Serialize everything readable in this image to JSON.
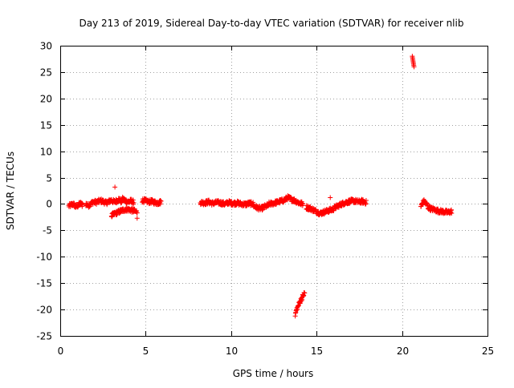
{
  "chart_data": {
    "type": "scatter",
    "title": "Day 213 of 2019, Sidereal Day-to-day VTEC variation (SDTVAR) for receiver nlib",
    "xlabel": "GPS time / hours",
    "ylabel": "SDTVAR / TECUs",
    "xlim": [
      0,
      25
    ],
    "ylim": [
      -25,
      30
    ],
    "xticks": [
      0,
      5,
      10,
      15,
      20,
      25
    ],
    "yticks": [
      -25,
      -20,
      -15,
      -10,
      -5,
      0,
      5,
      10,
      15,
      20,
      25,
      30
    ],
    "xtick_labels": [
      "0",
      "5",
      "10",
      "15",
      "20",
      "25"
    ],
    "ytick_labels": [
      "-25",
      "-20",
      "-15",
      "-10",
      "-5",
      "0",
      "5",
      "10",
      "15",
      "20",
      "25",
      "30"
    ],
    "grid": true,
    "marker": "+",
    "color": "#ff0000",
    "series": [
      {
        "name": "nlib",
        "segments": [
          {
            "x_start": 0.5,
            "x_end": 1.3,
            "y": [
              -0.4,
              -0.2,
              0.0,
              -0.5,
              -0.3,
              0.1,
              -0.2
            ]
          },
          {
            "x_start": 1.5,
            "x_end": 3.6,
            "y": [
              0.0,
              -0.3,
              0.1,
              0.4,
              0.3,
              0.5,
              0.6,
              0.4,
              0.2,
              0.5,
              0.7,
              0.4,
              0.6,
              0.9,
              0.3
            ]
          },
          {
            "x_start": 3.6,
            "x_end": 4.3,
            "y": [
              1.0,
              0.8,
              0.5,
              0.4,
              0.6,
              0.3
            ]
          },
          {
            "x_start": 3.0,
            "x_end": 4.5,
            "y": [
              -2.2,
              -1.8,
              -1.5,
              -1.2,
              -1.0,
              -1.1,
              -1.3,
              -1.5
            ]
          },
          {
            "x_start": 4.8,
            "x_end": 5.9,
            "y": [
              0.7,
              0.6,
              0.4,
              0.5,
              0.3,
              0.2,
              0.4
            ]
          },
          {
            "x_start": 8.2,
            "x_end": 11.3,
            "y": [
              0.3,
              0.2,
              0.4,
              0.1,
              0.3,
              0.2,
              0.0,
              0.3,
              0.1,
              0.2,
              0.0,
              -0.1,
              0.1,
              0.0
            ]
          },
          {
            "x_start": 11.3,
            "x_end": 12.2,
            "y": [
              -0.3,
              -0.7,
              -0.9,
              -0.5,
              -0.3
            ]
          },
          {
            "x_start": 12.2,
            "x_end": 14.2,
            "y": [
              0.0,
              0.1,
              0.3,
              0.5,
              0.7,
              1.2,
              0.9,
              0.6,
              0.2,
              0.0
            ]
          },
          {
            "x_start": 14.4,
            "x_end": 16.0,
            "y": [
              -0.6,
              -0.9,
              -1.3,
              -1.8,
              -1.5,
              -1.2,
              -1.0
            ]
          },
          {
            "x_start": 16.0,
            "x_end": 17.9,
            "y": [
              -0.8,
              -0.4,
              0.0,
              0.3,
              0.5,
              0.6,
              0.4,
              0.5,
              0.3
            ]
          },
          {
            "x_start": 13.75,
            "x_end": 14.3,
            "y": [
              -21.0,
              -20.0,
              -19.5,
              -18.8,
              -18.3,
              -17.8,
              -17.3,
              -16.9
            ]
          },
          {
            "x_start": 21.1,
            "x_end": 21.5,
            "y": [
              -0.5,
              0.2,
              0.5,
              0.1,
              -0.3
            ]
          },
          {
            "x_start": 21.5,
            "x_end": 22.9,
            "y": [
              -0.6,
              -0.9,
              -1.1,
              -1.3,
              -1.4,
              -1.5,
              -1.6,
              -1.4
            ]
          },
          {
            "x_start": 20.6,
            "x_end": 20.7,
            "y": [
              28.0,
              27.5,
              27.0,
              26.5,
              26.0
            ]
          }
        ],
        "outliers": [
          {
            "x": 3.2,
            "y": 3.2
          },
          {
            "x": 4.5,
            "y": -2.7
          },
          {
            "x": 15.8,
            "y": 1.2
          },
          {
            "x": 1.3,
            "y": 0.1
          }
        ]
      }
    ]
  }
}
